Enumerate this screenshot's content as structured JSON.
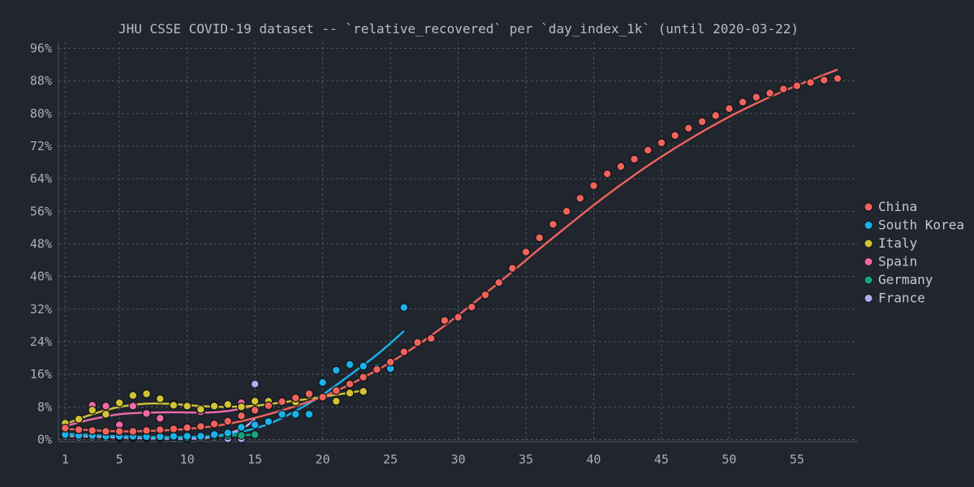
{
  "chart_data": {
    "type": "scatter",
    "title": "JHU CSSE COVID-19 dataset -- `relative_recovered` per `day_index_1k` (until 2020-03-22)",
    "xlabel": "",
    "ylabel": "",
    "xlim": [
      0.5,
      59.5
    ],
    "ylim": [
      -0.5,
      97.5
    ],
    "x_ticks": [
      1,
      5,
      10,
      15,
      20,
      25,
      30,
      35,
      40,
      45,
      50,
      55
    ],
    "y_ticks": [
      0,
      8,
      16,
      24,
      32,
      40,
      48,
      56,
      64,
      72,
      80,
      88,
      96
    ],
    "y_tick_labels": [
      "0%",
      "8%",
      "16%",
      "24%",
      "32%",
      "40%",
      "48%",
      "56%",
      "64%",
      "72%",
      "80%",
      "88%",
      "96%"
    ],
    "x_tick_labels": [
      "1",
      "5",
      "10",
      "15",
      "20",
      "25",
      "30",
      "35",
      "40",
      "45",
      "50",
      "55"
    ],
    "grid": true,
    "legend": "right",
    "series": [
      {
        "name": "China",
        "color": "#f0635c",
        "x": [
          1,
          2,
          3,
          4,
          5,
          6,
          7,
          8,
          9,
          10,
          11,
          12,
          13,
          14,
          15,
          16,
          17,
          18,
          19,
          20,
          21,
          22,
          23,
          24,
          25,
          26,
          27,
          28,
          29,
          30,
          31,
          32,
          33,
          34,
          35,
          36,
          37,
          38,
          39,
          40,
          41,
          42,
          43,
          44,
          45,
          46,
          47,
          48,
          49,
          50,
          51,
          52,
          53,
          54,
          55,
          56,
          57,
          58
        ],
        "y": [
          2.8,
          2.4,
          2.2,
          2.0,
          2.0,
          2.0,
          2.2,
          2.4,
          2.6,
          2.9,
          3.2,
          3.8,
          4.5,
          5.8,
          7.2,
          8.3,
          9.3,
          10.2,
          11.2,
          10.4,
          12.0,
          13.6,
          15.3,
          17.2,
          19.0,
          21.5,
          23.8,
          24.8,
          29.2,
          30.0,
          32.5,
          35.5,
          38.5,
          42.0,
          46.0,
          49.5,
          52.8,
          56.0,
          59.2,
          62.3,
          65.2,
          67.0,
          68.8,
          71.0,
          72.8,
          74.6,
          76.4,
          78.0,
          79.5,
          81.2,
          82.8,
          84.0,
          85.0,
          86.0,
          86.8,
          87.6,
          88.2,
          88.6
        ],
        "fit": [
          [
            1,
            2.6
          ],
          [
            5,
            2.0
          ],
          [
            8,
            2.2
          ],
          [
            10,
            2.6
          ],
          [
            12,
            3.3
          ],
          [
            14,
            4.5
          ],
          [
            16,
            6.2
          ],
          [
            18,
            8.2
          ],
          [
            20,
            10.5
          ],
          [
            22,
            13.5
          ],
          [
            24,
            17.0
          ],
          [
            26,
            21.0
          ],
          [
            28,
            25.5
          ],
          [
            30,
            30.5
          ],
          [
            32,
            35.8
          ],
          [
            34,
            41.2
          ],
          [
            36,
            46.8
          ],
          [
            38,
            52.2
          ],
          [
            40,
            57.5
          ],
          [
            42,
            62.5
          ],
          [
            44,
            67.2
          ],
          [
            46,
            71.5
          ],
          [
            48,
            75.5
          ],
          [
            50,
            79.2
          ],
          [
            52,
            82.5
          ],
          [
            54,
            85.5
          ],
          [
            56,
            88.2
          ],
          [
            58,
            90.8
          ]
        ]
      },
      {
        "name": "South Korea",
        "color": "#1ab2e8",
        "x": [
          1,
          2,
          3,
          4,
          5,
          6,
          7,
          8,
          9,
          10,
          11,
          12,
          13,
          14,
          15,
          16,
          17,
          18,
          19,
          20,
          21,
          22,
          23,
          24,
          25,
          26
        ],
        "y": [
          1.2,
          1.0,
          1.0,
          0.8,
          0.8,
          0.8,
          0.7,
          0.7,
          0.8,
          0.8,
          0.8,
          1.2,
          1.6,
          3.0,
          3.6,
          4.4,
          6.2,
          6.2,
          6.2,
          14.0,
          17.0,
          18.4,
          18.0,
          17.6,
          17.4,
          32.4
        ],
        "fit": [
          [
            1,
            1.4
          ],
          [
            4,
            0.9
          ],
          [
            7,
            0.5
          ],
          [
            10,
            0.5
          ],
          [
            12,
            0.9
          ],
          [
            14,
            1.9
          ],
          [
            16,
            3.8
          ],
          [
            18,
            7.0
          ],
          [
            20,
            11.0
          ],
          [
            22,
            15.8
          ],
          [
            24,
            20.8
          ],
          [
            26,
            26.6
          ]
        ]
      },
      {
        "name": "Italy",
        "color": "#d1c434",
        "x": [
          1,
          2,
          3,
          4,
          5,
          6,
          7,
          8,
          9,
          10,
          11,
          12,
          13,
          14,
          15,
          16,
          17,
          18,
          19,
          20,
          21,
          22,
          23
        ],
        "y": [
          4.0,
          5.0,
          7.2,
          6.2,
          9.0,
          10.8,
          11.2,
          10.0,
          8.4,
          8.2,
          7.4,
          8.2,
          8.6,
          8.0,
          9.4,
          9.4,
          9.4,
          9.2,
          10.8,
          10.4,
          9.4,
          11.4,
          11.8
        ],
        "fit": [
          [
            1,
            3.8
          ],
          [
            3,
            6.2
          ],
          [
            5,
            8.0
          ],
          [
            7,
            8.8
          ],
          [
            9,
            8.7
          ],
          [
            11,
            8.2
          ],
          [
            13,
            8.0
          ],
          [
            15,
            8.3
          ],
          [
            17,
            9.1
          ],
          [
            19,
            10.0
          ],
          [
            21,
            11.0
          ],
          [
            23,
            12.0
          ]
        ]
      },
      {
        "name": "Spain",
        "color": "#ef6aa8",
        "x": [
          1,
          3,
          4,
          5,
          6,
          7,
          8,
          9,
          10,
          11,
          12,
          13,
          14,
          15
        ],
        "y": [
          2.0,
          8.4,
          8.2,
          3.6,
          8.2,
          6.4,
          5.2,
          8.6,
          3.0,
          6.8,
          8.4,
          8.4,
          9.0,
          7.2
        ],
        "fit": [
          [
            1,
            3.3
          ],
          [
            3,
            5.0
          ],
          [
            5,
            6.2
          ],
          [
            7,
            6.6
          ],
          [
            9,
            6.7
          ],
          [
            11,
            6.6
          ],
          [
            12,
            6.7
          ],
          [
            13,
            7.0
          ],
          [
            14,
            7.6
          ],
          [
            15,
            8.4
          ]
        ]
      },
      {
        "name": "Germany",
        "color": "#18a47f",
        "x": [
          1,
          2,
          3,
          4,
          5,
          6,
          7,
          8,
          9,
          10,
          11,
          12,
          13,
          14,
          15
        ],
        "y": [
          1.2,
          1.0,
          1.0,
          1.0,
          0.6,
          0.6,
          0.6,
          0.4,
          0.6,
          0.4,
          0.8,
          0.8,
          1.0,
          1.0,
          1.2
        ],
        "fit": [
          [
            1,
            1.2
          ],
          [
            5,
            0.8
          ],
          [
            9,
            0.6
          ],
          [
            12,
            0.8
          ],
          [
            15,
            1.2
          ]
        ]
      },
      {
        "name": "France",
        "color": "#b9a8f0",
        "x": [
          1,
          2,
          3,
          4,
          5,
          6,
          7,
          8,
          9,
          10,
          11,
          12,
          13,
          14,
          15
        ],
        "y": [
          0.8,
          0.6,
          0.6,
          0.4,
          0.4,
          0.4,
          0.4,
          0.4,
          0.2,
          0.2,
          0.4,
          0.4,
          0.2,
          0.2,
          13.6
        ],
        "fit": [
          [
            1,
            0.9
          ],
          [
            4,
            0.6
          ],
          [
            7,
            0.3
          ],
          [
            10,
            0.2
          ],
          [
            12,
            0.7
          ],
          [
            14,
            2.6
          ],
          [
            15,
            5.0
          ]
        ]
      }
    ]
  }
}
